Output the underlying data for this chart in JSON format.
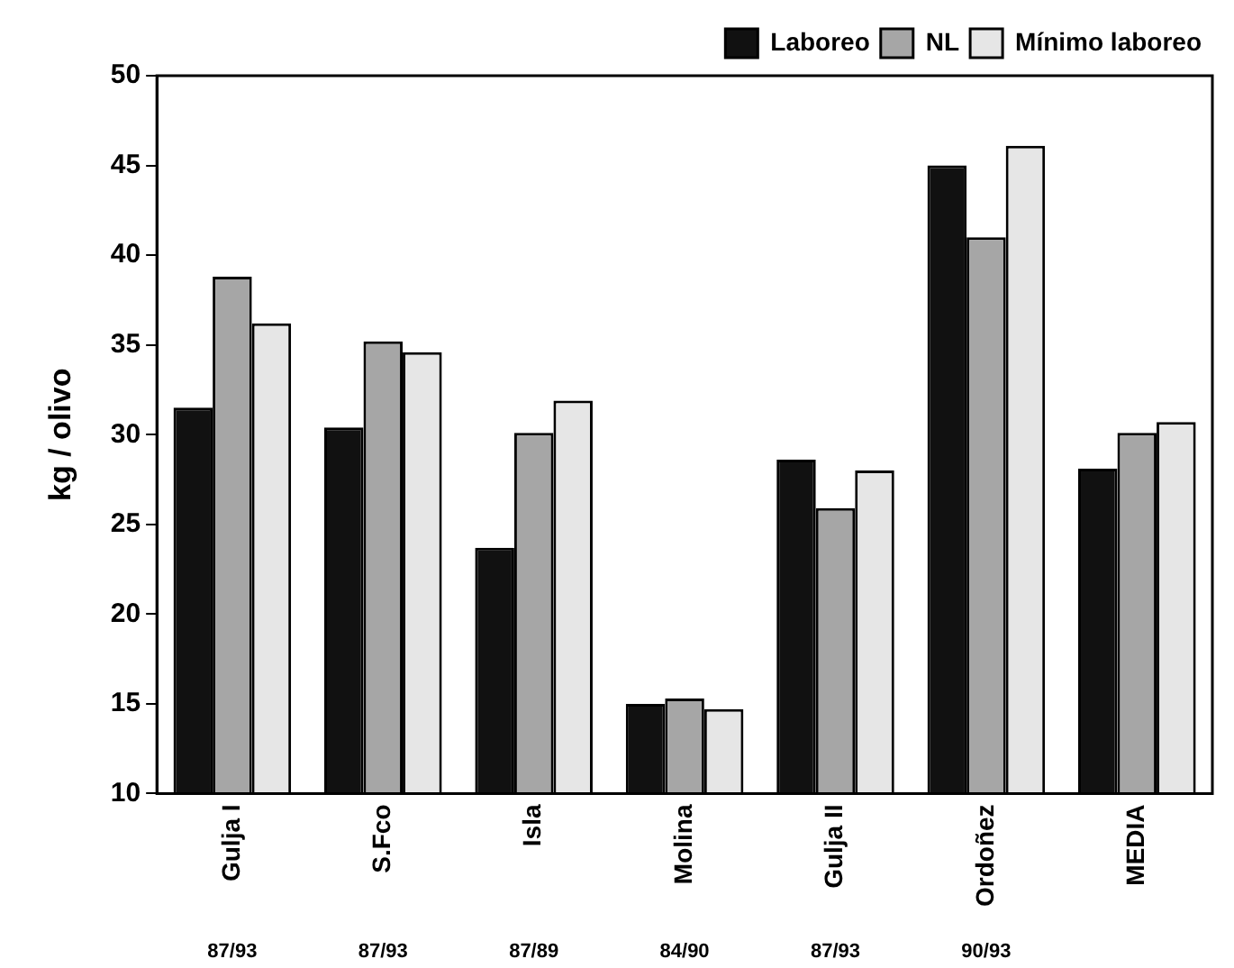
{
  "chart_data": {
    "type": "bar",
    "ylabel": "kg / olivo",
    "categories": [
      "Gulja I",
      "S.Fco",
      "Isla",
      "Molina",
      "Gulja II",
      "Ordoñez",
      "MEDIA"
    ],
    "series": [
      {
        "name": "Laboreo",
        "color": "#111111",
        "values": [
          31.5,
          30.4,
          23.7,
          15.0,
          28.6,
          45.0,
          28.1
        ]
      },
      {
        "name": "NL",
        "color": "#a6a6a6",
        "values": [
          38.8,
          35.2,
          30.1,
          15.3,
          25.9,
          41.0,
          30.1
        ]
      },
      {
        "name": "Mínimo laboreo",
        "color": "#e6e6e6",
        "values": [
          36.2,
          34.6,
          31.9,
          14.7,
          28.0,
          46.1,
          30.7
        ]
      }
    ],
    "ylim": [
      10,
      50
    ],
    "yticks": [
      10,
      15,
      20,
      25,
      30,
      35,
      40,
      45,
      50
    ],
    "grid": false,
    "legend": "top right",
    "annotations": [
      "87/93",
      "87/93",
      "87/89",
      "84/90",
      "87/93",
      "90/93"
    ]
  }
}
